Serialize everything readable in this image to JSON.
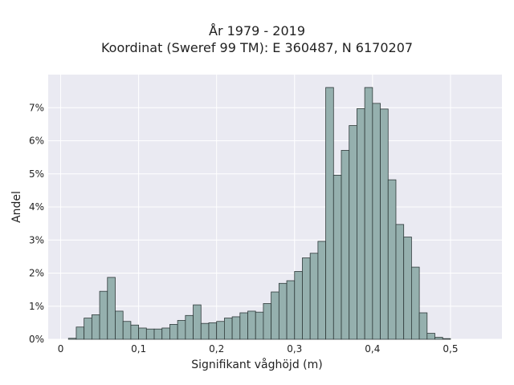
{
  "title": {
    "line1": "År 1979 - 2019",
    "line2": "Koordinat (Sweref 99 TM): E 360487, N 6170207"
  },
  "colors": {
    "plot_background": "#eaeaf2",
    "grid": "#ffffff",
    "bar_fill": "#95b0ae",
    "bar_edge": "#2f3a3a"
  },
  "chart_data": {
    "type": "bar",
    "title": "År 1979 - 2019\nKoordinat (Sweref 99 TM): E 360487, N 6170207",
    "xlabel": "Signifikant våghöjd (m)",
    "ylabel": "Andel",
    "xlim": [
      -0.016,
      0.566
    ],
    "ylim": [
      0,
      0.08
    ],
    "grid": true,
    "bin_width": 0.01,
    "x_ticks": [
      {
        "value": 0,
        "label": "0"
      },
      {
        "value": 0.1,
        "label": "0,1"
      },
      {
        "value": 0.2,
        "label": "0,2"
      },
      {
        "value": 0.3,
        "label": "0,3"
      },
      {
        "value": 0.4,
        "label": "0,4"
      },
      {
        "value": 0.5,
        "label": "0,5"
      }
    ],
    "y_ticks": [
      {
        "value": 0,
        "label": "0%"
      },
      {
        "value": 0.01,
        "label": "1%"
      },
      {
        "value": 0.02,
        "label": "2%"
      },
      {
        "value": 0.03,
        "label": "3%"
      },
      {
        "value": 0.04,
        "label": "4%"
      },
      {
        "value": 0.05,
        "label": "5%"
      },
      {
        "value": 0.06,
        "label": "6%"
      },
      {
        "value": 0.07,
        "label": "7%"
      }
    ],
    "bin_starts": [
      0.01,
      0.02,
      0.03,
      0.04,
      0.05,
      0.06,
      0.07,
      0.08,
      0.09,
      0.1,
      0.11,
      0.12,
      0.13,
      0.14,
      0.15,
      0.16,
      0.17,
      0.18,
      0.19,
      0.2,
      0.21,
      0.22,
      0.23,
      0.24,
      0.25,
      0.26,
      0.27,
      0.28,
      0.29,
      0.3,
      0.31,
      0.32,
      0.33,
      0.34,
      0.35,
      0.36,
      0.37,
      0.38,
      0.39,
      0.4,
      0.41,
      0.42,
      0.43,
      0.44,
      0.45,
      0.46,
      0.47,
      0.48,
      0.49,
      0.5,
      0.51,
      0.52
    ],
    "values": [
      0.0003,
      0.0037,
      0.0064,
      0.0074,
      0.0145,
      0.0187,
      0.0085,
      0.0054,
      0.0043,
      0.0034,
      0.0031,
      0.0031,
      0.0034,
      0.0045,
      0.0057,
      0.0072,
      0.0104,
      0.0048,
      0.005,
      0.0054,
      0.0064,
      0.0068,
      0.008,
      0.0085,
      0.0082,
      0.0108,
      0.0143,
      0.0169,
      0.0177,
      0.0205,
      0.0246,
      0.026,
      0.0296,
      0.0761,
      0.0496,
      0.0571,
      0.0646,
      0.0697,
      0.0761,
      0.0713,
      0.0696,
      0.0482,
      0.0347,
      0.0309,
      0.0218,
      0.008,
      0.0018,
      0.0006,
      0.0002,
      0.0,
      0.0,
      0.0
    ]
  }
}
